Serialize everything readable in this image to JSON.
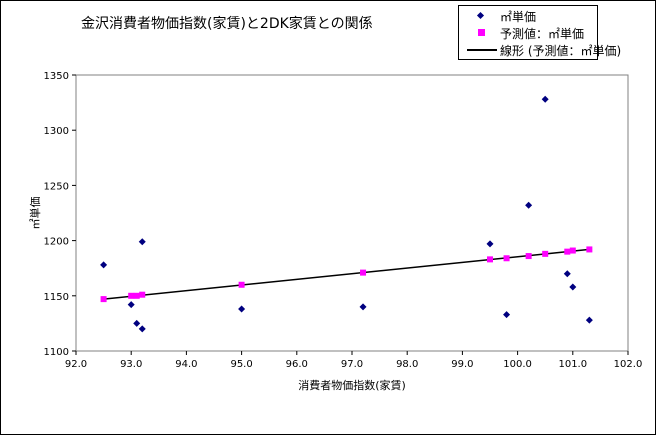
{
  "chart_data": {
    "type": "scatter",
    "title": "金沢消費者物価指数(家賃)と2DK家賃との関係",
    "xlabel": "消費者物価指数(家賃)",
    "ylabel": "㎡単価",
    "xlim": [
      92.0,
      102.0
    ],
    "ylim": [
      1100,
      1350
    ],
    "x_ticks": [
      "92.0",
      "93.0",
      "94.0",
      "95.0",
      "96.0",
      "97.0",
      "98.0",
      "99.0",
      "100.0",
      "101.0",
      "102.0"
    ],
    "y_ticks": [
      "1100",
      "1150",
      "1200",
      "1250",
      "1300",
      "1350"
    ],
    "grid": false,
    "legend_position": "top-right",
    "series": [
      {
        "name": "㎡単価",
        "marker": "diamond",
        "color": "#000080",
        "points": [
          [
            92.5,
            1178
          ],
          [
            93.0,
            1142
          ],
          [
            93.1,
            1125
          ],
          [
            93.2,
            1120
          ],
          [
            93.2,
            1199
          ],
          [
            95.0,
            1138
          ],
          [
            97.2,
            1140
          ],
          [
            99.5,
            1197
          ],
          [
            99.8,
            1133
          ],
          [
            100.2,
            1232
          ],
          [
            100.5,
            1328
          ],
          [
            100.9,
            1170
          ],
          [
            101.0,
            1158
          ],
          [
            101.3,
            1128
          ]
        ]
      },
      {
        "name": "予測値：㎡単価",
        "marker": "square",
        "color": "#ff00ff",
        "points": [
          [
            92.5,
            1147
          ],
          [
            93.0,
            1150
          ],
          [
            93.1,
            1150
          ],
          [
            93.2,
            1151
          ],
          [
            95.0,
            1160
          ],
          [
            97.2,
            1171
          ],
          [
            99.5,
            1183
          ],
          [
            99.8,
            1184
          ],
          [
            100.2,
            1186
          ],
          [
            100.5,
            1188
          ],
          [
            100.9,
            1190
          ],
          [
            101.0,
            1191
          ],
          [
            101.3,
            1192
          ]
        ]
      },
      {
        "name": "線形 (予測値：㎡単価)",
        "marker": "line",
        "color": "#000000",
        "points": [
          [
            92.5,
            1147
          ],
          [
            101.3,
            1192
          ]
        ]
      }
    ]
  }
}
